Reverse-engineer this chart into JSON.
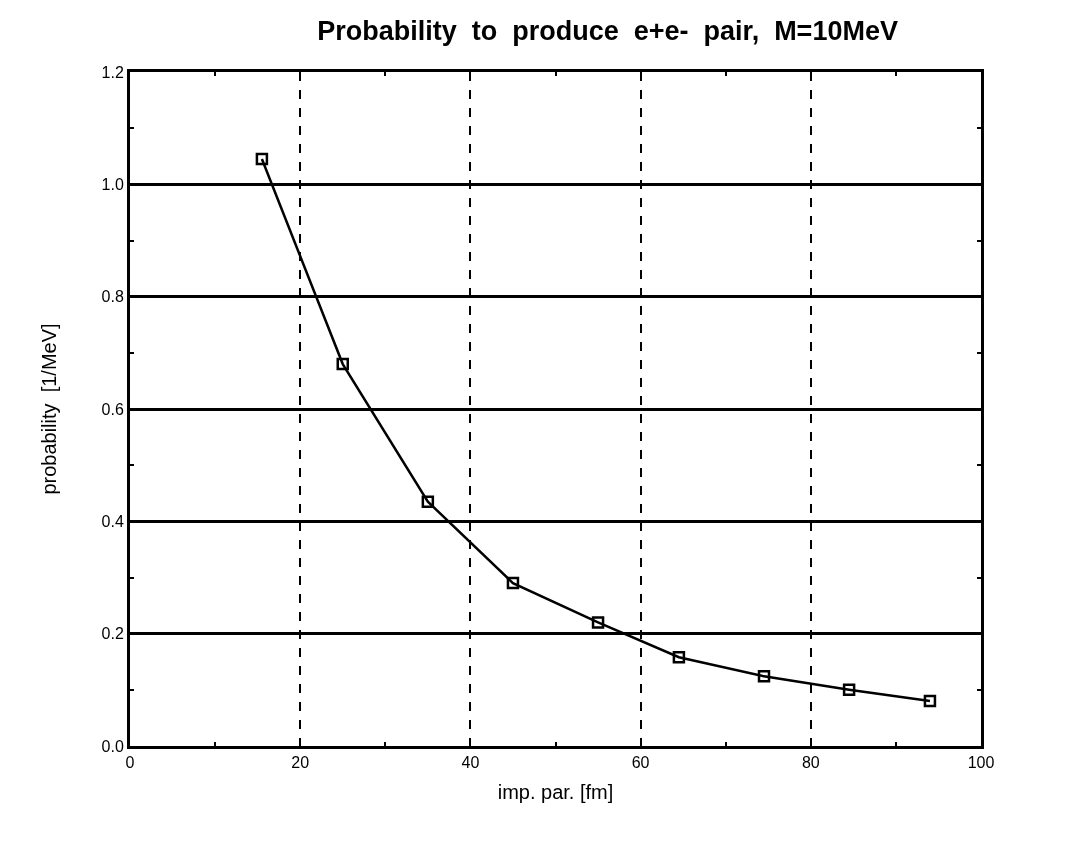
{
  "chart_data": {
    "type": "line",
    "title": "Probability  to  produce  e+e-  pair,  M=10MeV",
    "xlabel": "imp. par. [fm]",
    "ylabel": "probability  [1/MeV]",
    "x": [
      15.5,
      25,
      35,
      45,
      55,
      64.5,
      74.5,
      84.5,
      94
    ],
    "series": [
      {
        "color": "#000000",
        "values": [
          1.045,
          0.68,
          0.435,
          0.29,
          0.22,
          0.158,
          0.124,
          0.1,
          0.08
        ]
      }
    ],
    "xlim": [
      0,
      100
    ],
    "xticks": [
      {
        "value": 0,
        "label": "0"
      },
      {
        "value": 20,
        "label": "20"
      },
      {
        "value": 40,
        "label": "40"
      },
      {
        "value": 60,
        "label": "60"
      },
      {
        "value": 80,
        "label": "80"
      },
      {
        "value": 100,
        "label": "100"
      }
    ],
    "ylim": [
      0,
      1.2
    ],
    "yticks": [
      {
        "value": 0,
        "label": "0.0"
      },
      {
        "value": 0.2,
        "label": "0.2"
      },
      {
        "value": 0.4,
        "label": "0.4"
      },
      {
        "value": 0.6,
        "label": "0.6"
      },
      {
        "value": 0.8,
        "label": "0.8"
      },
      {
        "value": 1.0,
        "label": "1.0"
      },
      {
        "value": 1.2,
        "label": "1.2"
      }
    ],
    "grid": true,
    "legend": false,
    "marker": "square",
    "line_style": "solid"
  }
}
